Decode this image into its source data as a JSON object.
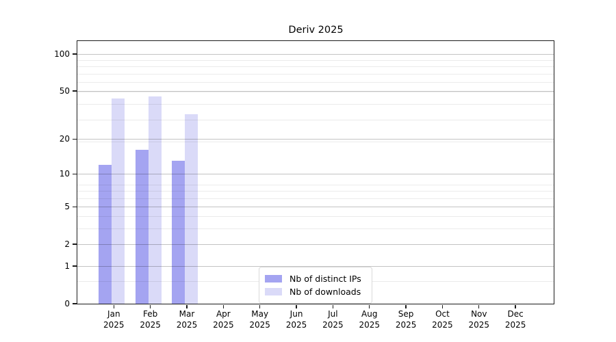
{
  "title": "Deriv 2025",
  "chart_data": {
    "type": "bar",
    "title": "Deriv 2025",
    "xlabel": "",
    "ylabel": "",
    "categories": [
      "Jan 2025",
      "Feb 2025",
      "Mar 2025",
      "Apr 2025",
      "May 2025",
      "Jun 2025",
      "Jul 2025",
      "Aug 2025",
      "Sep 2025",
      "Oct 2025",
      "Nov 2025",
      "Dec 2025"
    ],
    "series": [
      {
        "name": "Nb of distinct IPs",
        "color": "#a4a4f1",
        "values": [
          12,
          16,
          13,
          null,
          null,
          null,
          null,
          null,
          null,
          null,
          null,
          null
        ]
      },
      {
        "name": "Nb of downloads",
        "color": "#dadaf8",
        "values": [
          43,
          45,
          32,
          null,
          null,
          null,
          null,
          null,
          null,
          null,
          null,
          null
        ]
      }
    ],
    "y_scale": "log10(value+1)",
    "y_major_ticks": [
      100,
      50,
      20,
      10,
      5,
      2,
      1,
      0
    ],
    "y_minor_gridlines": [
      89,
      79,
      69,
      59,
      49,
      39,
      29,
      19,
      8,
      7,
      6,
      4,
      3,
      0.5
    ],
    "ylim": [
      0,
      128
    ],
    "grid": true,
    "legend_position": "lower center"
  },
  "legend": {
    "items": [
      {
        "label": "Nb of distinct IPs",
        "color": "#a4a4f1"
      },
      {
        "label": "Nb of downloads",
        "color": "#dadaf8"
      }
    ]
  },
  "colors": {
    "major_grid": "#c3c3c3",
    "minor_grid": "#ebebeb",
    "spine": "#1a1a1a",
    "text": "#000000",
    "legend_border": "#d9d9d9",
    "background": "#ffffff"
  }
}
